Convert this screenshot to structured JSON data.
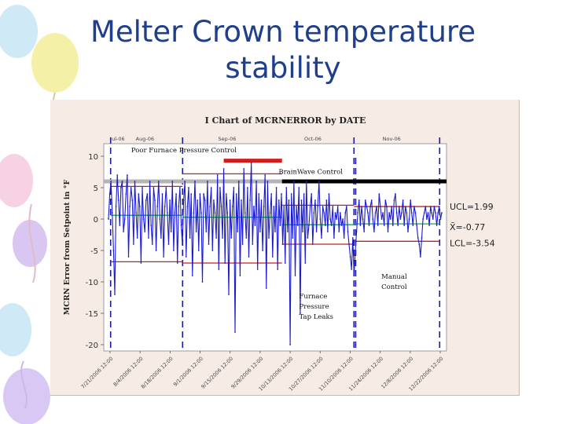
{
  "slide": {
    "title_line1": "Melter Crown temperature",
    "title_line2": "stability"
  },
  "chart_data": {
    "type": "line",
    "title": "I Chart of MCRNERROR by DATE",
    "xlabel": "",
    "ylabel": "MCRN Error from Setpoint in °F",
    "ylim": [
      -21,
      12
    ],
    "yticks": [
      10,
      5,
      0,
      -5,
      -10,
      -15,
      -20
    ],
    "month_labels": [
      "Jul-06",
      "Aug-06",
      "Sep-06",
      "Oct-06",
      "Nov-06"
    ],
    "date_tick_labels": [
      "7/21/2006 12:00",
      "8/4/2006 12:00",
      "8/18/2006 12:00",
      "9/1/2006 12:00",
      "9/15/2006 12:00",
      "9/29/2006 12:00",
      "10/13/2006 12:00",
      "10/27/2006 12:00",
      "11/10/2006 12:00",
      "11/24/2006 12:00",
      "12/8/2006 12:00",
      "12/22/2006 12:00"
    ],
    "control_limits": {
      "ucl_label": "UCL=1.99",
      "ucl": 1.99,
      "mean_label": "X̄=-0.77",
      "mean": -0.77,
      "lcl_label": "LCL=-3.54",
      "lcl": -3.54
    },
    "annotations": {
      "poor_furnace": "Poor Furnace Pressure Control",
      "brainwave": "BrainWave Control",
      "furnace_leaks": [
        "Furnace",
        "Pressure",
        "Tap Leaks"
      ],
      "manual_control": [
        "Manual",
        "Control"
      ]
    },
    "colors": {
      "series": "#1a1ad0",
      "limit": "#c81e1e",
      "mean": "#1aa84a",
      "baseline_gray": "#b4b4b4",
      "brainwave_bar": "#000000",
      "poor_bar": "#d21c1c"
    },
    "grid": false,
    "series": [
      {
        "values": [
          0,
          4,
          6,
          1,
          -5,
          -12,
          2,
          7,
          3,
          -1,
          5,
          6,
          -2,
          0,
          4,
          7,
          -6,
          2,
          5,
          3,
          -4,
          6,
          1,
          -3,
          4,
          2,
          -7,
          5,
          0,
          -2,
          3,
          4,
          -3,
          6,
          -1,
          -4,
          5,
          3,
          -5,
          2,
          6,
          0,
          -3,
          4,
          -6,
          2,
          5,
          1,
          -4,
          3,
          -2,
          6,
          -5,
          1,
          4,
          -7,
          2,
          5,
          -1,
          -4,
          3,
          6,
          -6,
          2,
          5,
          -3,
          4,
          -9,
          1,
          6,
          -2,
          3,
          -5,
          4,
          1,
          -10,
          4,
          3,
          -2,
          6,
          -4,
          2,
          5,
          -5,
          3,
          1,
          -3,
          7,
          -8,
          5,
          2,
          -3,
          8,
          -7,
          4,
          1,
          -12,
          3,
          -3,
          2,
          5,
          -18,
          4,
          -2,
          6,
          -9,
          3,
          -4,
          8,
          1,
          -3,
          5,
          -6,
          3,
          9,
          -4,
          2,
          -1,
          6,
          -8,
          4,
          -2,
          3,
          -5,
          2,
          7,
          -11,
          6,
          -3,
          1,
          4,
          -6,
          2,
          -2,
          5,
          -8,
          3,
          -1,
          4,
          -4,
          2,
          -7,
          5,
          -2,
          3,
          -20,
          4,
          -3,
          6,
          -9,
          2,
          -1,
          5,
          -15,
          3,
          -2,
          4,
          -7,
          6,
          -3,
          -1,
          2,
          4,
          -4,
          1,
          3,
          -2,
          2,
          6,
          0,
          -3,
          2,
          1,
          -1,
          3,
          -2,
          4,
          0,
          -1,
          2,
          -3,
          1,
          0,
          2,
          -2,
          1,
          -1,
          0,
          -3,
          1,
          2,
          -2,
          -4,
          -6,
          -8,
          -3,
          -9,
          -5,
          -2,
          1,
          3,
          -1,
          2,
          0,
          -2,
          3,
          2,
          1,
          -1,
          2,
          3,
          0,
          -2,
          1,
          2,
          -1,
          4,
          2,
          0,
          1,
          -1,
          3,
          2,
          -2,
          1,
          0,
          2,
          -1,
          3,
          4,
          1,
          -1,
          2,
          0,
          1,
          3,
          -1,
          2,
          1,
          -2,
          0,
          3,
          1,
          -1,
          2,
          1,
          -1,
          -3,
          -4,
          -6,
          -3,
          0,
          1,
          2,
          0,
          1,
          -1,
          2,
          1,
          0,
          2,
          1,
          -1,
          1,
          2,
          0,
          1
        ]
      }
    ]
  }
}
